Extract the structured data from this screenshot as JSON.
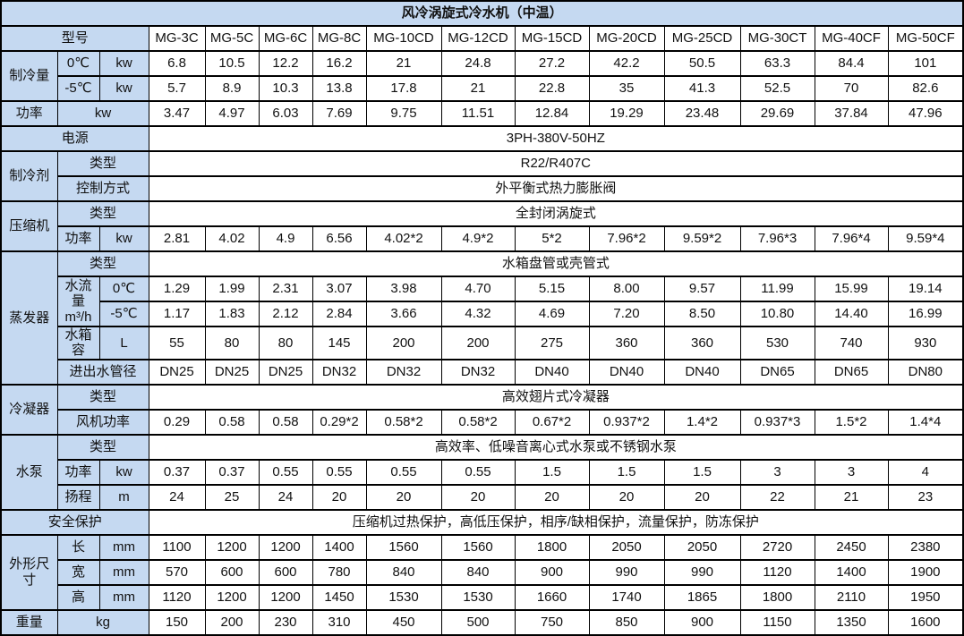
{
  "title": "风冷涡旋式冷水机（中温）",
  "colors": {
    "header_bg": "#C5D9F1",
    "cell_bg": "#FFFFFF",
    "border": "#000000",
    "text": "#111111"
  },
  "labels": {
    "model": "型号",
    "cooling_capacity": "制冷量",
    "t0": "0℃",
    "t5": "-5℃",
    "kw": "kw",
    "power": "功率",
    "supply": "电源",
    "refrigerant": "制冷剂",
    "type": "类型",
    "control": "控制方式",
    "compressor": "压缩机",
    "evaporator": "蒸发器",
    "flow": "水流量\nm³/h",
    "tank": "水箱容",
    "liters": "L",
    "pipe": "进出水管径",
    "condenser": "冷凝器",
    "fan_power": "风机功率",
    "pump": "水泵",
    "head": "扬程",
    "meters": "m",
    "safety": "安全保护",
    "dimensions": "外形尺寸",
    "length": "长",
    "width": "宽",
    "height": "高",
    "mm": "mm",
    "weight": "重量",
    "kg": "kg"
  },
  "models": [
    "MG-3C",
    "MG-5C",
    "MG-6C",
    "MG-8C",
    "MG-10CD",
    "MG-12CD",
    "MG-15CD",
    "MG-20CD",
    "MG-25CD",
    "MG-30CT",
    "MG-40CF",
    "MG-50CF"
  ],
  "values": {
    "cooling_0c": [
      "6.8",
      "10.5",
      "12.2",
      "16.2",
      "21",
      "24.8",
      "27.2",
      "42.2",
      "50.5",
      "63.3",
      "84.4",
      "101"
    ],
    "cooling_m5c": [
      "5.7",
      "8.9",
      "10.3",
      "13.8",
      "17.8",
      "21",
      "22.8",
      "35",
      "41.3",
      "52.5",
      "70",
      "82.6"
    ],
    "input_power": [
      "3.47",
      "4.97",
      "6.03",
      "7.69",
      "9.75",
      "11.51",
      "12.84",
      "19.29",
      "23.48",
      "29.69",
      "37.84",
      "47.96"
    ],
    "supply": "3PH-380V-50HZ",
    "refrigerant_type": "R22/R407C",
    "refrigerant_control": "外平衡式热力膨胀阀",
    "compressor_type": "全封闭涡旋式",
    "compressor_power": [
      "2.81",
      "4.02",
      "4.9",
      "6.56",
      "4.02*2",
      "4.9*2",
      "5*2",
      "7.96*2",
      "9.59*2",
      "7.96*3",
      "7.96*4",
      "9.59*4"
    ],
    "evaporator_type": "水箱盘管或壳管式",
    "flow_0c": [
      "1.29",
      "1.99",
      "2.31",
      "3.07",
      "3.98",
      "4.70",
      "5.15",
      "8.00",
      "9.57",
      "11.99",
      "15.99",
      "19.14"
    ],
    "flow_m5c": [
      "1.17",
      "1.83",
      "2.12",
      "2.84",
      "3.66",
      "4.32",
      "4.69",
      "7.20",
      "8.50",
      "10.80",
      "14.40",
      "16.99"
    ],
    "tank_volume": [
      "55",
      "80",
      "80",
      "145",
      "200",
      "200",
      "275",
      "360",
      "360",
      "530",
      "740",
      "930"
    ],
    "pipe_diameter": [
      "DN25",
      "DN25",
      "DN25",
      "DN32",
      "DN32",
      "DN32",
      "DN40",
      "DN40",
      "DN40",
      "DN65",
      "DN65",
      "DN80"
    ],
    "condenser_type": "高效翅片式冷凝器",
    "fan_power": [
      "0.29",
      "0.58",
      "0.58",
      "0.29*2",
      "0.58*2",
      "0.58*2",
      "0.67*2",
      "0.937*2",
      "1.4*2",
      "0.937*3",
      "1.5*2",
      "1.4*4"
    ],
    "pump_type": "高效率、低噪音离心式水泵或不锈钢水泵",
    "pump_power": [
      "0.37",
      "0.37",
      "0.55",
      "0.55",
      "0.55",
      "0.55",
      "1.5",
      "1.5",
      "1.5",
      "3",
      "3",
      "4"
    ],
    "pump_head": [
      "24",
      "25",
      "24",
      "20",
      "20",
      "20",
      "20",
      "20",
      "20",
      "22",
      "21",
      "23"
    ],
    "safety": "压缩机过热保护，高低压保护，相序/缺相保护，流量保护，防冻保护",
    "dim_length": [
      "1100",
      "1200",
      "1200",
      "1400",
      "1560",
      "1560",
      "1800",
      "2050",
      "2050",
      "2720",
      "2450",
      "2380"
    ],
    "dim_width": [
      "570",
      "600",
      "600",
      "780",
      "840",
      "840",
      "900",
      "990",
      "990",
      "1120",
      "1400",
      "1900"
    ],
    "dim_height": [
      "1120",
      "1200",
      "1200",
      "1450",
      "1530",
      "1530",
      "1660",
      "1740",
      "1865",
      "1800",
      "2110",
      "1950"
    ],
    "weight": [
      "150",
      "200",
      "230",
      "310",
      "450",
      "500",
      "750",
      "850",
      "900",
      "1150",
      "1350",
      "1600"
    ]
  }
}
